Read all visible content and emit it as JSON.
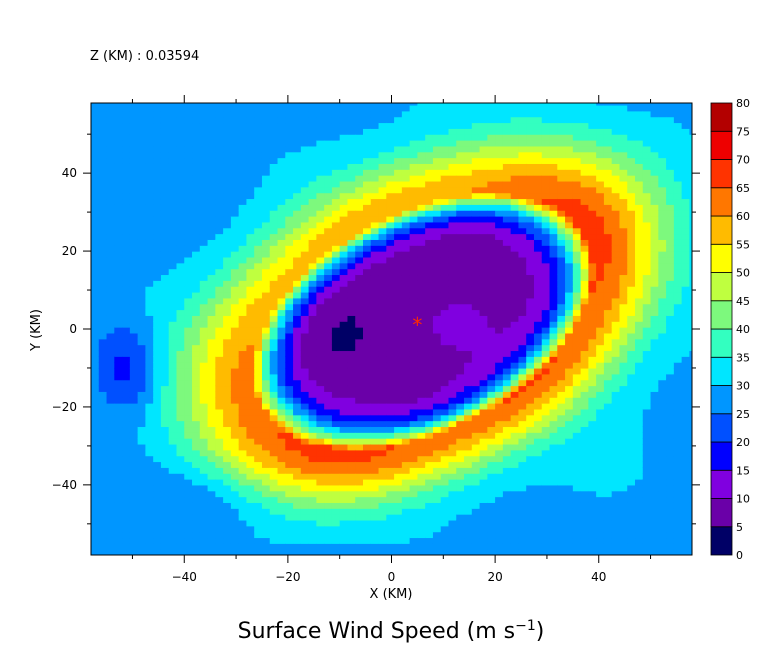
{
  "chart_data": {
    "type": "heatmap",
    "header": "Z (KM) : 0.03594",
    "title": "Surface Wind Speed (m s",
    "title_exponent": "−1",
    "title_close": ")",
    "xlabel": "X (KM)",
    "ylabel": "Y (KM)",
    "xlim": [
      -58,
      58
    ],
    "ylim": [
      -58,
      58
    ],
    "xticks": [
      -40,
      -20,
      0,
      20,
      40
    ],
    "yticks": [
      -40,
      -20,
      0,
      20,
      40
    ],
    "grid": false,
    "colorbar": {
      "levels": [
        0,
        5,
        10,
        15,
        20,
        25,
        30,
        35,
        40,
        45,
        50,
        55,
        60,
        65,
        70,
        75,
        80
      ],
      "labels": [
        "0",
        "5",
        "10",
        "15",
        "20",
        "25",
        "30",
        "35",
        "40",
        "45",
        "50",
        "55",
        "60",
        "65",
        "70",
        "75",
        "80"
      ],
      "colors": [
        "#000066",
        "#6a00a8",
        "#8000e0",
        "#0000ff",
        "#0050ff",
        "#0096ff",
        "#00e6ff",
        "#33ffc0",
        "#7df97d",
        "#bfff3f",
        "#ffff00",
        "#ffbb00",
        "#ff7700",
        "#ff3300",
        "#ee0000",
        "#b30000"
      ]
    },
    "center_marker": {
      "symbol": "*",
      "x": 5,
      "y": 1,
      "color": "#ff2a00"
    },
    "field": {
      "background_speed": 29,
      "vortex_center": [
        6,
        2
      ],
      "eye_minimum": 7,
      "peak_speed": 63,
      "radius_of_max_wind_km": 30
    }
  }
}
